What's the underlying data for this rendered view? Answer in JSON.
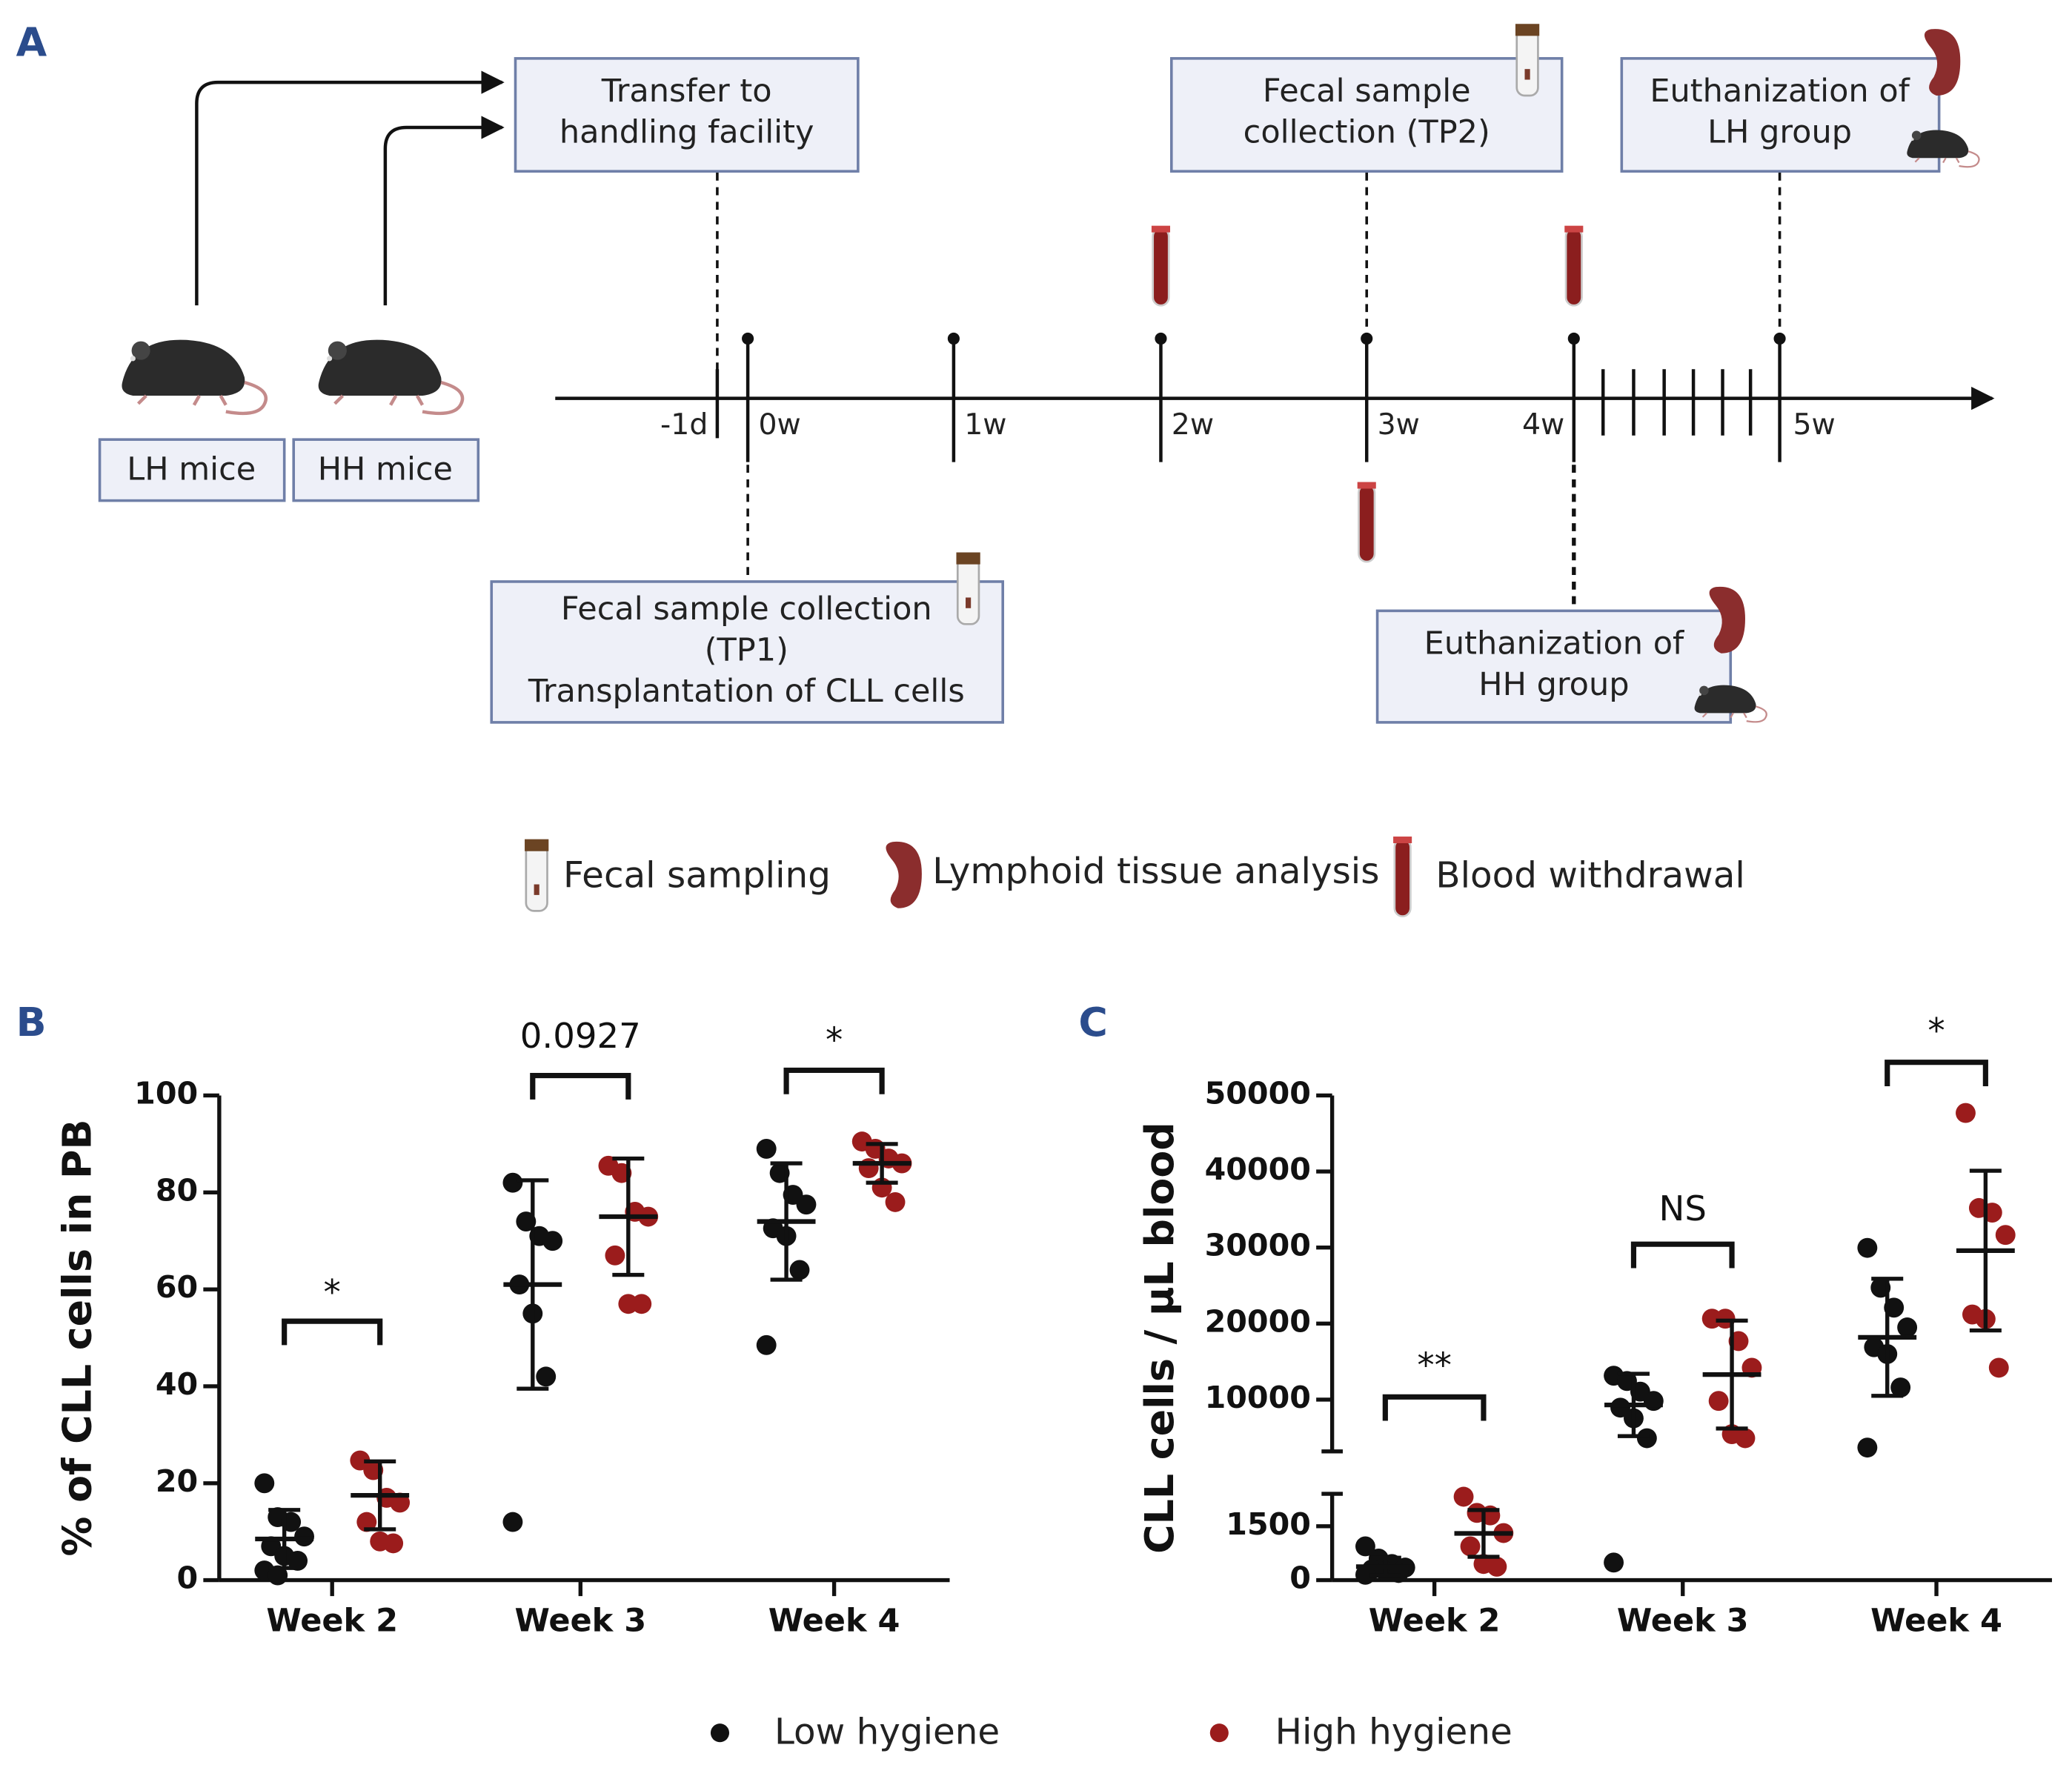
{
  "panel_a": {
    "label": "A",
    "boxes": [
      {
        "lines": [
          "Transfer to",
          "handling facility"
        ]
      },
      {
        "lines": [
          "Fecal sample",
          "collection (TP2)"
        ]
      },
      {
        "lines": [
          "Euthanization of",
          "LH group"
        ]
      },
      {
        "lines": [
          "Fecal sample collection",
          "(TP1)",
          "Transplantation of CLL cells"
        ]
      },
      {
        "lines": [
          "Euthanization of",
          "HH group"
        ]
      }
    ],
    "groups": [
      "LH mice",
      "HH mice"
    ],
    "timeline": [
      "-1d",
      "0w",
      "1w",
      "2w",
      "3w",
      "4w",
      "5w"
    ],
    "legend": [
      "Fecal sampling",
      "Lymphoid tissue analysis",
      "Blood withdrawal"
    ]
  },
  "chart_data": [
    {
      "type": "strip",
      "panel": "B",
      "ylabel": "% of CLL cells in PB",
      "categories": [
        "Week 2",
        "Week 3",
        "Week 4"
      ],
      "series": [
        {
          "name": "Low hygiene",
          "color": "#111111",
          "values": [
            [
              20,
              13,
              12,
              9,
              7,
              5,
              4,
              2,
              1
            ],
            [
              82,
              74,
              71,
              70,
              61,
              55,
              42,
              12
            ],
            [
              89,
              84,
              79.5,
              77.5,
              72.6,
              71,
              64,
              48.5
            ]
          ],
          "mean": [
            8.5,
            61,
            74
          ],
          "sd": [
            6,
            21.5,
            12
          ]
        },
        {
          "name": "High hygiene",
          "color": "#9b1c1c",
          "values": [
            [
              24.7,
              22.7,
              17,
              16,
              12,
              8,
              7.6
            ],
            [
              85.5,
              84,
              76,
              75,
              67,
              57,
              57
            ],
            [
              90.5,
              89,
              87,
              86,
              85,
              81,
              78
            ]
          ],
          "mean": [
            17.5,
            75,
            86
          ],
          "sd": [
            7,
            12,
            4
          ]
        }
      ],
      "annotations": [
        "*",
        "0.0927",
        "*"
      ],
      "ylim": [
        0,
        100
      ],
      "yticks": [
        0,
        20,
        40,
        60,
        80,
        100
      ]
    },
    {
      "type": "strip",
      "panel": "C",
      "ylabel": "CLL cells / µL blood",
      "categories": [
        "Week 2",
        "Week 3",
        "Week 4"
      ],
      "series": [
        {
          "color": "#111111",
          "values": [
            [
              940,
              600,
              450,
              350,
              300,
              250,
              200,
              150
            ],
            [
              13150,
              12450,
              11050,
              9830,
              8950,
              7550,
              4930,
              490
            ],
            [
              29960,
              24720,
              22100,
              19500,
              16900,
              16000,
              11600,
              3700
            ]
          ],
          "mean": [
            375,
            9300,
            18200
          ],
          "sd": [
            250,
            4100,
            7700
          ]
        },
        {
          "color": "#9b1c1c",
          "values": [
            [
              2320,
              1870,
              1800,
              1310,
              940,
              450,
              375
            ],
            [
              20650,
              20650,
              17700,
              14200,
              9830,
              5460,
              4930
            ],
            [
              47700,
              35200,
              34600,
              31660,
              21200,
              20600,
              14200
            ]
          ],
          "mean": [
            1300,
            13300,
            29600
          ],
          "sd": [
            650,
            7100,
            10500
          ]
        }
      ],
      "annotations": [
        "**",
        "NS",
        "*"
      ],
      "segments": [
        {
          "ylim": [
            0,
            2400
          ],
          "yticks": [
            0,
            1500
          ]
        },
        {
          "ylim": [
            3200,
            50000
          ],
          "yticks": [
            10000,
            20000,
            30000,
            40000,
            50000
          ]
        }
      ]
    }
  ]
}
